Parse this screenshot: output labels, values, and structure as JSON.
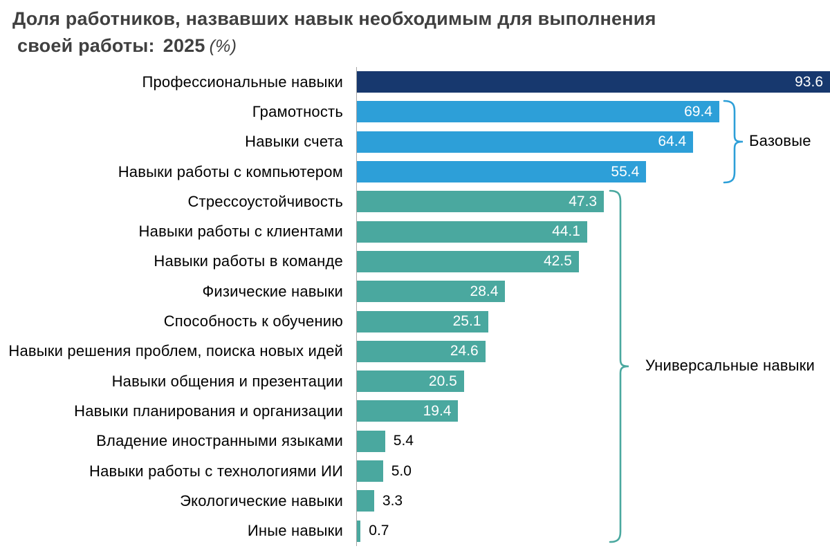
{
  "title": {
    "line1": "Доля работников, назвавших навык необходимым для выполнения",
    "line2": "своей работы:",
    "year": "2025",
    "unit": "(%)"
  },
  "chart_data": {
    "type": "bar",
    "orientation": "horizontal",
    "value_unit": "%",
    "xlim": [
      0,
      100
    ],
    "grid": false,
    "legend": "none",
    "bars": [
      {
        "label": "Профессиональные навыки",
        "value": 93.6,
        "group": "professional"
      },
      {
        "label": "Грамотность",
        "value": 69.4,
        "group": "basic"
      },
      {
        "label": "Навыки счета",
        "value": 64.4,
        "group": "basic"
      },
      {
        "label": "Навыки работы с компьютером",
        "value": 55.4,
        "group": "basic"
      },
      {
        "label": "Стрессоустойчивость",
        "value": 47.3,
        "group": "universal"
      },
      {
        "label": "Навыки работы с клиентами",
        "value": 44.1,
        "group": "universal"
      },
      {
        "label": "Навыки работы в команде",
        "value": 42.5,
        "group": "universal"
      },
      {
        "label": "Физические навыки",
        "value": 28.4,
        "group": "universal"
      },
      {
        "label": "Способность к обучению",
        "value": 25.1,
        "group": "universal"
      },
      {
        "label": "Навыки решения проблем, поиска новых идей",
        "value": 24.6,
        "group": "universal"
      },
      {
        "label": "Навыки общения и презентации",
        "value": 20.5,
        "group": "universal"
      },
      {
        "label": "Навыки планирования и организации",
        "value": 19.4,
        "group": "universal"
      },
      {
        "label": "Владение иностранными языками",
        "value": 5.4,
        "group": "universal"
      },
      {
        "label": "Навыки работы с технологиями ИИ",
        "value": 5.0,
        "group": "universal"
      },
      {
        "label": "Экологические навыки",
        "value": 3.3,
        "group": "universal"
      },
      {
        "label": "Иные навыки",
        "value": 0.7,
        "group": "universal"
      }
    ],
    "colors": {
      "professional": "#17386e",
      "basic": "#2d9fd8",
      "universal": "#4aa89f",
      "axis": "#a6a6a6"
    },
    "annotations": [
      {
        "label": "Базовые",
        "group": "basic"
      },
      {
        "label": "Универсальные навыки",
        "group": "universal"
      }
    ]
  }
}
